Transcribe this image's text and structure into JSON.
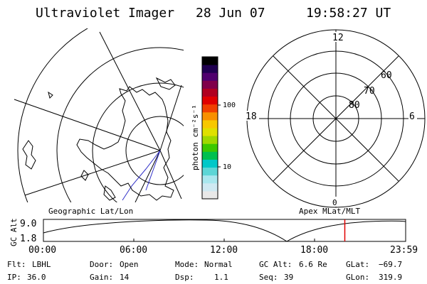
{
  "header": {
    "instrument": "Ultraviolet Imager",
    "date": "28 Jun 07",
    "time": "19:58:27 UT"
  },
  "colorbar": {
    "unit_label": "photon cm⁻²s⁻¹",
    "tick_labels": [
      "100",
      "10"
    ],
    "colors": [
      "#e8e8e8",
      "#cfe9f2",
      "#a9e7ee",
      "#5cd6d6",
      "#00c8c8",
      "#00c050",
      "#3cc800",
      "#a0d800",
      "#e0e000",
      "#f8c800",
      "#f89000",
      "#f04000",
      "#e00000",
      "#b00020",
      "#80004a",
      "#50006e",
      "#200050",
      "#000000"
    ]
  },
  "geographic_map": {
    "label": "Geographic Lat/Lon"
  },
  "polar_plot": {
    "label": "Apex MLat/MLT",
    "mlt_labels": {
      "top": "12",
      "left": "18",
      "right": "6",
      "bottom": "0"
    },
    "lat_labels": [
      "60",
      "70",
      "80"
    ]
  },
  "altitude_timeline": {
    "axis_label": "GC Alt",
    "y_tick_labels": [
      "9.0",
      "1.8"
    ],
    "x_tick_labels": [
      "00:00",
      "06:00",
      "12:00",
      "18:00",
      "23:59"
    ],
    "current_time_fraction": 0.832,
    "marker_color": "#e00000"
  },
  "status": {
    "row1": [
      {
        "label": "Flt:",
        "value": "LBHL"
      },
      {
        "label": "Door:",
        "value": "Open"
      },
      {
        "label": "Mode:",
        "value": "Normal"
      },
      {
        "label": "GC Alt:",
        "value": "6.6 Re"
      },
      {
        "label": "GLat:",
        "value": "−69.7"
      }
    ],
    "row2": [
      {
        "label": "IP:",
        "value": "36.0"
      },
      {
        "label": "Gain:",
        "value": "14"
      },
      {
        "label": "Dsp:",
        "value": "1.1"
      },
      {
        "label": "Seq:",
        "value": "39"
      },
      {
        "label": "GLon:",
        "value": "319.9"
      }
    ]
  }
}
